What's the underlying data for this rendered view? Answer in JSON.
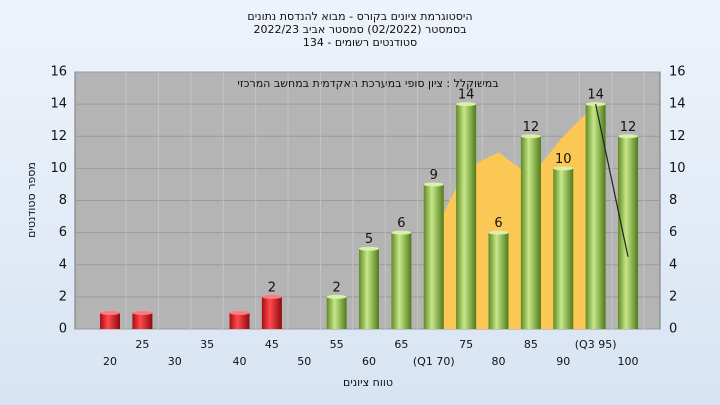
{
  "chart_data": {
    "type": "bar",
    "title": [
      "היסטוגרמת ציונים בקורס - מבוא להנדסת נתונים",
      "בסמסטר  (02/2022)  סמסטר אביב 2022/23",
      "סטודנטים רשומים - 134"
    ],
    "annotation": "במשוקלל : ציון סופי במערכת האקדמית במחשב המרכזי",
    "xlabel": "טווח ציונים",
    "ylabel": "מספר סטודנטים",
    "categories": [
      "20",
      "25",
      "30",
      "35",
      "40",
      "45",
      "50",
      "55",
      "60",
      "65",
      "(Q1 70)",
      "75",
      "80",
      "85",
      "90",
      "(Q3 95)",
      "100"
    ],
    "values": [
      1,
      1,
      0,
      0,
      1,
      2,
      0,
      2,
      5,
      6,
      9,
      14,
      6,
      12,
      10,
      14,
      12
    ],
    "value_labels": [
      null,
      null,
      null,
      null,
      null,
      "2",
      null,
      "2",
      "5",
      "6",
      "9",
      "14",
      "6",
      "12",
      "10",
      "14",
      "12"
    ],
    "colors": [
      "red",
      "red",
      "red",
      "red",
      "red",
      "red",
      "red",
      "green",
      "green",
      "green",
      "green",
      "green",
      "green",
      "green",
      "green",
      "green",
      "green"
    ],
    "area": {
      "x": [
        70,
        75,
        80,
        85,
        90,
        95
      ],
      "values": [
        6,
        10,
        11,
        9.5,
        12,
        14
      ],
      "color": "#fbc755"
    },
    "line": {
      "x": [
        95,
        100
      ],
      "values": [
        14,
        4.5
      ],
      "color": "#222222"
    },
    "ylim": [
      0,
      16
    ],
    "yticks": [
      0,
      2,
      4,
      6,
      8,
      10,
      12,
      14,
      16
    ],
    "y2lim": [
      0,
      16
    ],
    "y2ticks": [
      0,
      2,
      4,
      6,
      8,
      10,
      12,
      14,
      16
    ],
    "grid": true
  }
}
